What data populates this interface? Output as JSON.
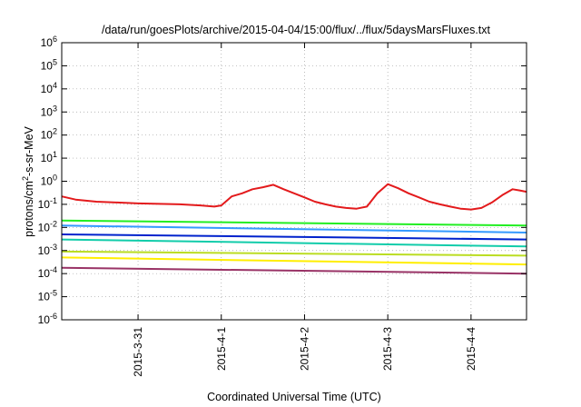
{
  "chart_data": {
    "type": "line",
    "title": "/data/run/goesPlots/archive/2015-04-04/15:00/flux/../flux/5daysMarsFluxes.txt",
    "xlabel": "Coordinated Universal Time (UTC)",
    "ylabel_parts": [
      "protons/cm",
      "2",
      "-s-sr-MeV"
    ],
    "xlim": [
      "2015-03-30 02:00",
      "2015-04-04 16:00"
    ],
    "ylim": [
      1e-06,
      1000000.0
    ],
    "yscale": "log",
    "grid": true,
    "x_ticks": [
      {
        "t": "2015-03-31 00:00",
        "label": "2015-3-31"
      },
      {
        "t": "2015-04-01 00:00",
        "label": "2015-4-1"
      },
      {
        "t": "2015-04-02 00:00",
        "label": "2015-4-2"
      },
      {
        "t": "2015-04-03 00:00",
        "label": "2015-4-3"
      },
      {
        "t": "2015-04-04 00:00",
        "label": "2015-4-4"
      }
    ],
    "y_ticks": [
      {
        "base": "10",
        "exp": "-6",
        "value": 1e-06
      },
      {
        "base": "10",
        "exp": "-5",
        "value": 1e-05
      },
      {
        "base": "10",
        "exp": "-4",
        "value": 0.0001
      },
      {
        "base": "10",
        "exp": "-3",
        "value": 0.001
      },
      {
        "base": "10",
        "exp": "-2",
        "value": 0.01
      },
      {
        "base": "10",
        "exp": "-1",
        "value": 0.1
      },
      {
        "base": "10",
        "exp": "0",
        "value": 1
      },
      {
        "base": "10",
        "exp": "1",
        "value": 10
      },
      {
        "base": "10",
        "exp": "2",
        "value": 100
      },
      {
        "base": "10",
        "exp": "3",
        "value": 1000
      },
      {
        "base": "10",
        "exp": "4",
        "value": 10000
      },
      {
        "base": "10",
        "exp": "5",
        "value": 100000
      },
      {
        "base": "10",
        "exp": "6",
        "value": 1000000
      }
    ],
    "series": [
      {
        "color": "#e31a1c",
        "values": [
          [
            "2015-03-30 02:00",
            0.22
          ],
          [
            "2015-03-30 06:00",
            0.16
          ],
          [
            "2015-03-30 12:00",
            0.13
          ],
          [
            "2015-03-30 18:00",
            0.12
          ],
          [
            "2015-03-31 00:00",
            0.11
          ],
          [
            "2015-03-31 06:00",
            0.105
          ],
          [
            "2015-03-31 12:00",
            0.1
          ],
          [
            "2015-03-31 18:00",
            0.09
          ],
          [
            "2015-03-31 22:00",
            0.08
          ],
          [
            "2015-04-01 00:00",
            0.09
          ],
          [
            "2015-04-01 03:00",
            0.22
          ],
          [
            "2015-04-01 06:00",
            0.3
          ],
          [
            "2015-04-01 09:00",
            0.45
          ],
          [
            "2015-04-01 12:00",
            0.55
          ],
          [
            "2015-04-01 15:00",
            0.7
          ],
          [
            "2015-04-01 18:00",
            0.45
          ],
          [
            "2015-04-01 21:00",
            0.3
          ],
          [
            "2015-04-02 00:00",
            0.2
          ],
          [
            "2015-04-02 03:00",
            0.13
          ],
          [
            "2015-04-02 06:00",
            0.1
          ],
          [
            "2015-04-02 09:00",
            0.08
          ],
          [
            "2015-04-02 12:00",
            0.07
          ],
          [
            "2015-04-02 15:00",
            0.065
          ],
          [
            "2015-04-02 18:00",
            0.08
          ],
          [
            "2015-04-02 21:00",
            0.3
          ],
          [
            "2015-04-03 00:00",
            0.75
          ],
          [
            "2015-04-03 03:00",
            0.5
          ],
          [
            "2015-04-03 06:00",
            0.3
          ],
          [
            "2015-04-03 09:00",
            0.2
          ],
          [
            "2015-04-03 12:00",
            0.13
          ],
          [
            "2015-04-03 15:00",
            0.1
          ],
          [
            "2015-04-03 18:00",
            0.08
          ],
          [
            "2015-04-03 21:00",
            0.065
          ],
          [
            "2015-04-04 00:00",
            0.06
          ],
          [
            "2015-04-04 03:00",
            0.07
          ],
          [
            "2015-04-04 06:00",
            0.12
          ],
          [
            "2015-04-04 09:00",
            0.25
          ],
          [
            "2015-04-04 12:00",
            0.45
          ],
          [
            "2015-04-04 14:00",
            0.4
          ],
          [
            "2015-04-04 16:00",
            0.35
          ]
        ]
      },
      {
        "color": "#22ee22",
        "values": [
          [
            "2015-03-30 02:00",
            0.02
          ],
          [
            "2015-04-04 16:00",
            0.012
          ]
        ]
      },
      {
        "color": "#3399ff",
        "values": [
          [
            "2015-03-30 02:00",
            0.012
          ],
          [
            "2015-04-04 16:00",
            0.006
          ]
        ]
      },
      {
        "color": "#0022cc",
        "values": [
          [
            "2015-03-30 02:00",
            0.005
          ],
          [
            "2015-04-04 16:00",
            0.003
          ]
        ]
      },
      {
        "color": "#11ccaa",
        "values": [
          [
            "2015-03-30 02:00",
            0.003
          ],
          [
            "2015-04-04 16:00",
            0.0015
          ]
        ]
      },
      {
        "color": "#bbdd22",
        "values": [
          [
            "2015-03-30 02:00",
            0.0009
          ],
          [
            "2015-04-04 16:00",
            0.0006
          ]
        ]
      },
      {
        "color": "#ffee00",
        "values": [
          [
            "2015-03-30 02:00",
            0.0005
          ],
          [
            "2015-04-04 16:00",
            0.00025
          ]
        ]
      },
      {
        "color": "#993366",
        "values": [
          [
            "2015-03-30 02:00",
            0.00018
          ],
          [
            "2015-04-04 16:00",
            0.0001
          ]
        ]
      }
    ]
  }
}
